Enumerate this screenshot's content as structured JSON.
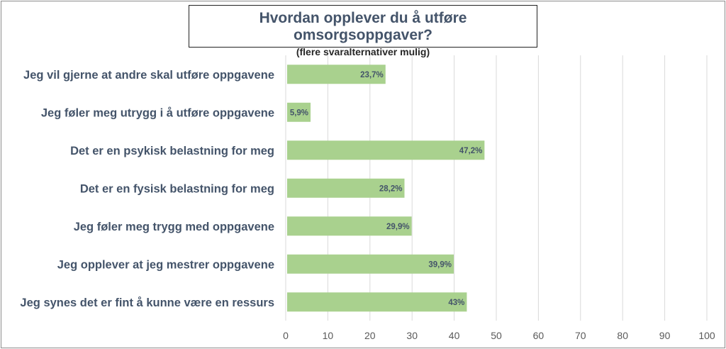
{
  "chart_data": {
    "type": "bar",
    "orientation": "horizontal",
    "title": "Hvordan opplever du å utføre omsorgsoppgaver?",
    "subtitle": "(flere svaralternativer mulig)",
    "categories": [
      "Jeg vil gjerne at andre skal utføre oppgavene",
      "Jeg føler meg utrygg i å utføre oppgavene",
      "Det er en psykisk belastning for meg",
      "Det er en fysisk belastning for meg",
      "Jeg føler meg trygg med oppgavene",
      "Jeg opplever at jeg mestrer oppgavene",
      "Jeg synes det er fint å kunne være en ressurs"
    ],
    "values": [
      23.7,
      5.9,
      47.2,
      28.2,
      29.9,
      39.9,
      43
    ],
    "value_labels": [
      "23,7%",
      "5,9%",
      "47,2%",
      "28,2%",
      "29,9%",
      "39,9%",
      "43%"
    ],
    "xlim": [
      0,
      100
    ],
    "xticks": [
      0,
      10,
      20,
      30,
      40,
      50,
      60,
      70,
      80,
      90,
      100
    ],
    "grid": true,
    "bar_color": "#a9d18e",
    "label_color": "#44546a"
  }
}
